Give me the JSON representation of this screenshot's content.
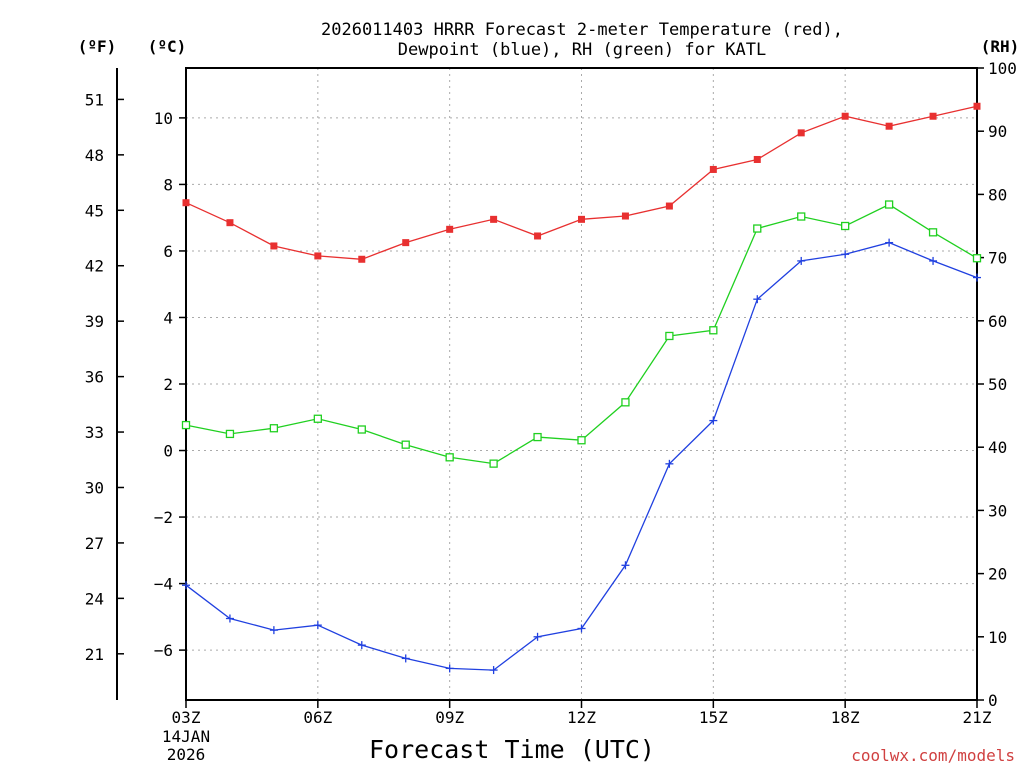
{
  "chart_data": {
    "type": "line",
    "title": [
      "2026011403 HRRR Forecast 2-meter Temperature (red),",
      "Dewpoint (blue), RH (green) for KATL"
    ],
    "xlabel": "Forecast Time (UTC)",
    "x_hours": [
      0,
      1,
      2,
      3,
      4,
      5,
      6,
      7,
      8,
      9,
      10,
      11,
      12,
      13,
      14,
      15,
      16,
      17,
      18
    ],
    "x_ticks": [
      {
        "hour": 0,
        "label": "03Z"
      },
      {
        "hour": 3,
        "label": "06Z"
      },
      {
        "hour": 6,
        "label": "09Z"
      },
      {
        "hour": 9,
        "label": "12Z"
      },
      {
        "hour": 12,
        "label": "15Z"
      },
      {
        "hour": 15,
        "label": "18Z"
      },
      {
        "hour": 18,
        "label": "21Z"
      }
    ],
    "start_date": [
      "14JAN",
      "2026"
    ],
    "left_axis_c": {
      "unit": "(ºC)",
      "range": [
        -7.5,
        11.5
      ],
      "ticks": [
        -6,
        -4,
        -2,
        0,
        2,
        4,
        6,
        8,
        10
      ]
    },
    "left_axis_f": {
      "unit": "(ºF)",
      "ticks": [
        21,
        24,
        27,
        30,
        33,
        36,
        39,
        42,
        45,
        48,
        51
      ]
    },
    "right_axis_rh": {
      "unit": "(RH)",
      "range": [
        0,
        100
      ],
      "ticks": [
        0,
        10,
        20,
        30,
        40,
        50,
        60,
        70,
        80,
        90,
        100
      ]
    },
    "series": [
      {
        "name": "Temperature",
        "axis": "C",
        "color": "#e83030",
        "marker": "filled-square",
        "values": [
          7.45,
          6.85,
          6.15,
          5.85,
          5.75,
          6.25,
          6.65,
          6.95,
          6.45,
          6.95,
          7.05,
          7.35,
          8.45,
          8.75,
          9.55,
          10.05,
          9.75,
          10.05,
          10.35
        ]
      },
      {
        "name": "Dewpoint",
        "axis": "C",
        "color": "#2040e0",
        "marker": "plus",
        "values": [
          -4.05,
          -5.05,
          -5.4,
          -5.25,
          -5.85,
          -6.25,
          -6.55,
          -6.6,
          -5.6,
          -5.35,
          -3.45,
          -0.4,
          0.9,
          4.55,
          5.7,
          5.9,
          6.25,
          5.7,
          5.2
        ]
      },
      {
        "name": "RH",
        "axis": "RH",
        "color": "#20d020",
        "marker": "open-square",
        "values": [
          43.5,
          42.1,
          43.0,
          44.5,
          42.8,
          40.4,
          38.4,
          37.4,
          41.6,
          41.1,
          47.1,
          57.6,
          58.5,
          74.6,
          76.5,
          75.0,
          78.4,
          74.0,
          69.9
        ]
      }
    ]
  },
  "credit": "coolwx.com/models"
}
